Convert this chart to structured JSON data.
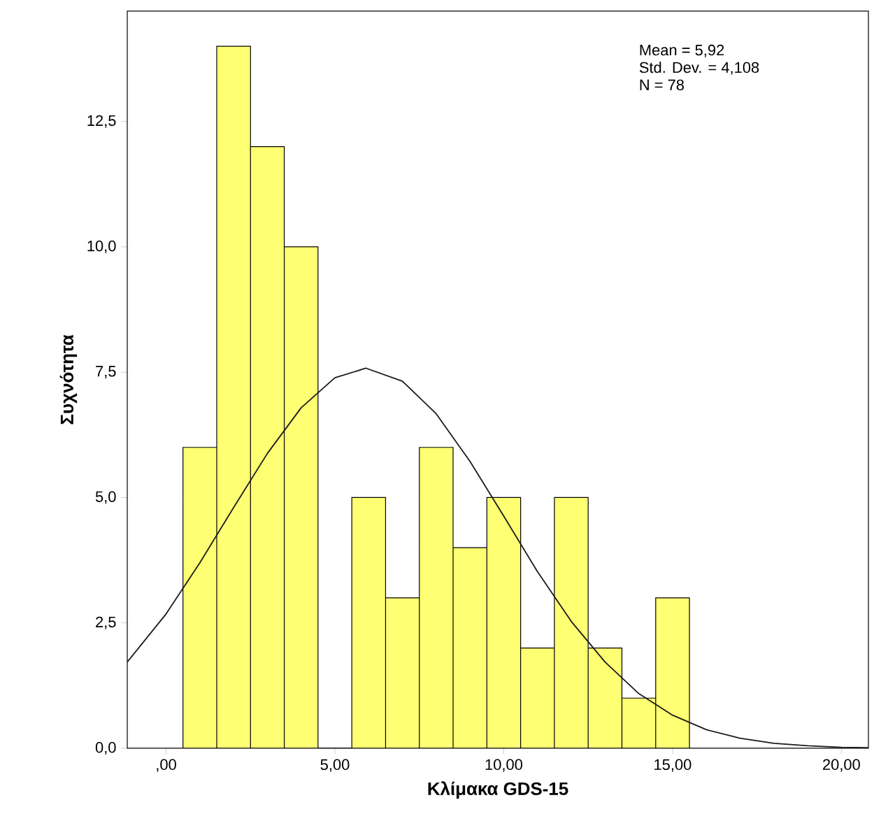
{
  "chart_data": {
    "type": "histogram",
    "xlabel": "Κλίμακα GDS-15",
    "ylabel": "Συχνότητα",
    "bins": [
      0.5,
      1.5,
      2.5,
      3.5,
      4.5,
      5.5,
      6.5,
      7.5,
      8.5,
      9.5,
      10.5,
      11.5,
      12.5,
      13.5,
      14.5,
      15.5
    ],
    "values": [
      6,
      14,
      12,
      10,
      0,
      5,
      3,
      6,
      4,
      5,
      2,
      5,
      2,
      1,
      3
    ],
    "color": "#ffff73",
    "xlim": [
      -1.15,
      20.8
    ],
    "ylim": [
      0,
      14.7
    ],
    "xticks": [
      {
        "value": 0,
        "label": ",00"
      },
      {
        "value": 5,
        "label": "5,00"
      },
      {
        "value": 10,
        "label": "10,00"
      },
      {
        "value": 15,
        "label": "15,00"
      },
      {
        "value": 20,
        "label": "20,00"
      }
    ],
    "yticks": [
      {
        "value": 0,
        "label": "0,0"
      },
      {
        "value": 2.5,
        "label": "2,5"
      },
      {
        "value": 5,
        "label": "5,0"
      },
      {
        "value": 7.5,
        "label": "7,5"
      },
      {
        "value": 10,
        "label": "10,0"
      },
      {
        "value": 12.5,
        "label": "12,5"
      }
    ],
    "annotations": [
      "Mean = 5,92",
      "Std. Dev. = 4,108",
      "N = 78"
    ],
    "series": [
      {
        "type": "line",
        "color": "#1a1a1a",
        "x": [
          -1.15,
          0,
          1,
          2,
          3,
          4,
          5,
          5.92,
          7,
          8,
          9,
          10,
          11,
          12,
          13,
          14,
          15,
          16,
          17,
          18,
          19,
          20,
          20.8
        ],
        "values": [
          1.72,
          2.68,
          3.7,
          4.8,
          5.88,
          6.79,
          7.39,
          7.58,
          7.32,
          6.67,
          5.72,
          4.63,
          3.52,
          2.53,
          1.72,
          1.09,
          0.66,
          0.37,
          0.2,
          0.1,
          0.05,
          0.02,
          0.01
        ]
      }
    ]
  }
}
